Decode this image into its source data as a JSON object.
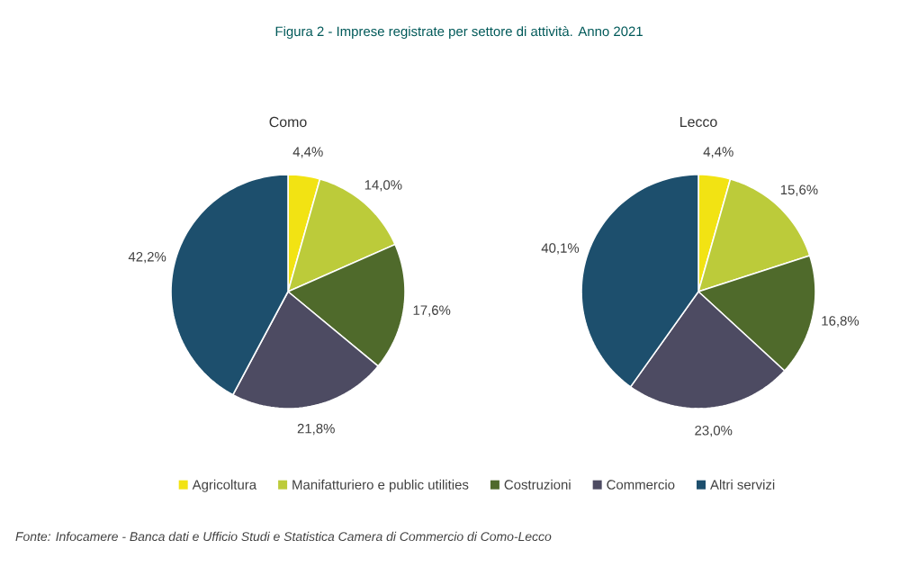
{
  "chart_data": [
    {
      "type": "pie",
      "title": "Como",
      "categories": [
        "Agricoltura",
        "Manifatturiero e public utilities",
        "Costruzioni",
        "Commercio",
        "Altri servizi"
      ],
      "values": [
        4.4,
        14.0,
        17.6,
        21.8,
        42.2
      ],
      "value_labels": [
        "4,4%",
        "14,0%",
        "17,6%",
        "21,8%",
        "42,2%"
      ],
      "colors": [
        "#f2e313",
        "#bccb3a",
        "#4f6a2b",
        "#4d4b62",
        "#1d4f6d"
      ],
      "legend": "bottom",
      "annotations": [
        "Figura 2 - Imprese registrate per settore di attività. Anno 2021",
        "Fonte: Infocamere - Banca dati e Ufficio Studi e Statistica Camera di Commercio di Como-Lecco"
      ]
    },
    {
      "type": "pie",
      "title": "Lecco",
      "categories": [
        null,
        null,
        null,
        null,
        null
      ],
      "values": [
        4.4,
        15.6,
        16.8,
        23.0,
        40.1
      ],
      "value_labels": [
        "4,4%",
        "15,6%",
        "16,8%",
        "23,0%",
        "40,1%"
      ],
      "colors": [
        "#f2e313",
        "#bccb3a",
        "#4f6a2b",
        "#4d4b62",
        "#1d4f6d"
      ]
    }
  ]
}
